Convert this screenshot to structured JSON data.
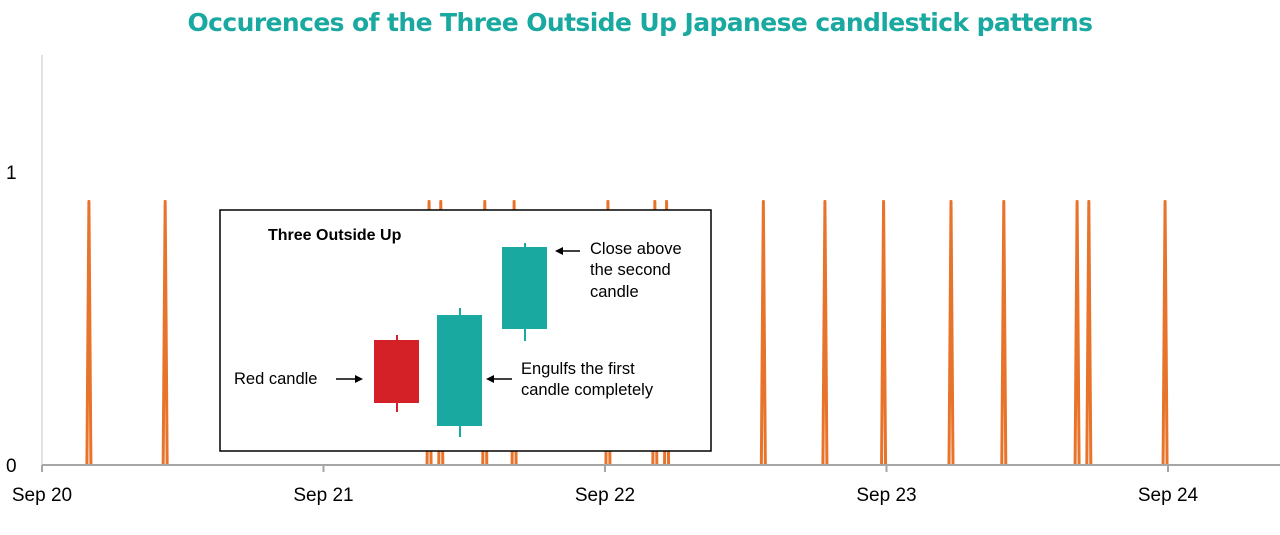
{
  "chart_data": {
    "type": "line",
    "title": "Occurences of the Three Outside Up Japanese candlestick patterns",
    "xlabel": "",
    "ylabel": "",
    "x_ticks": [
      "Sep 20",
      "Sep 21",
      "Sep 22",
      "Sep 23",
      "Sep 24"
    ],
    "y_ticks": [
      0,
      1
    ],
    "ylim": [
      0,
      1.4
    ],
    "grid": false,
    "series": [
      {
        "color": "#e8732a",
        "occurrences": [
          "2023-09-20 04:00",
          "2023-09-20 10:30",
          "2023-09-21 09:00",
          "2023-09-21 10:00",
          "2023-09-21 13:45",
          "2023-09-21 16:15",
          "2023-09-22 00:15",
          "2023-09-22 04:15",
          "2023-09-22 05:15",
          "2023-09-22 13:30",
          "2023-09-22 18:45",
          "2023-09-22 23:45",
          "2023-09-23 05:30",
          "2023-09-23 10:00",
          "2023-09-23 16:15",
          "2023-09-23 17:15",
          "2023-09-23 23:45"
        ],
        "value": 0.9
      }
    ],
    "inset": {
      "title": "Three Outside Up",
      "colors": {
        "red": "#d42027",
        "teal": "#1aa9a1"
      },
      "labels": {
        "red_candle": "Red candle",
        "engulf_line1": "Engulfs the first",
        "engulf_line2": "candle completely",
        "close_line1": "Close above",
        "close_line2": "the second",
        "close_line3": "candle"
      }
    }
  }
}
